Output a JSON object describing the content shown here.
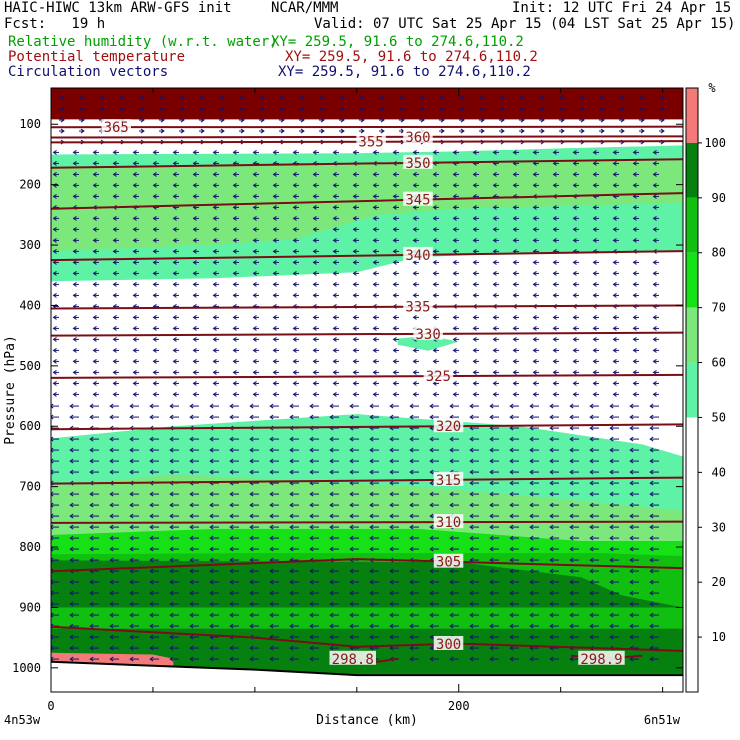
{
  "header": {
    "model": "HAIC-HIWC 13km ARW-GFS init",
    "org": "NCAR/MMM",
    "init": "Init: 12 UTC Fri 24 Apr 15",
    "fcst": "Fcst:   19 h",
    "valid": "Valid: 07 UTC Sat 25 Apr 15 (04 LST Sat 25 Apr 15)",
    "fields": [
      {
        "name": "Relative humidity (w.r.t. water)",
        "xy": "XY= 259.5, 91.6 to 274.6,110.2",
        "color": "#00a000"
      },
      {
        "name": "Potential temperature",
        "xy": "XY= 259.5, 91.6 to 274.6,110.2",
        "color": "#a01010"
      },
      {
        "name": "Circulation vectors",
        "xy": "XY= 259.5, 91.6 to 274.6,110.2",
        "color": "#101070"
      }
    ]
  },
  "colors": {
    "rh_50": "#5ef2a6",
    "rh_60": "#7ce87c",
    "rh_70": "#16e016",
    "rh_80": "#10bf10",
    "rh_90": "#06800e",
    "rh_100": "#f47a7a",
    "rh_top": "#7a0000",
    "theta": "#7a0e14",
    "vector": "#141470",
    "terrain": "#000000"
  },
  "chart_data": {
    "type": "heatmap",
    "title": "Relative humidity (w.r.t. water)",
    "xlabel": "Distance (km)",
    "ylabel": "Pressure (hPa)",
    "xlim": [
      0,
      310
    ],
    "ylim": [
      1040,
      40
    ],
    "y_scale": "pressure",
    "x_ticks": [
      "0",
      "200"
    ],
    "x_tick_values": [
      0,
      200
    ],
    "y_ticks": [
      "100",
      "200",
      "300",
      "400",
      "500",
      "600",
      "700",
      "800",
      "900",
      "1000"
    ],
    "y_tick_values": [
      100,
      200,
      300,
      400,
      500,
      600,
      700,
      800,
      900,
      1000
    ],
    "x_endpoints": [
      "4n53w",
      "6n51w"
    ],
    "colorbar": {
      "unit": "%",
      "levels": [
        10,
        20,
        30,
        40,
        50,
        60,
        70,
        80,
        90,
        100
      ],
      "labels": [
        "10",
        "20",
        "30",
        "40",
        "50",
        "60",
        "70",
        "80",
        "90",
        "100"
      ]
    },
    "rh_regions": [
      {
        "level": 100,
        "top_pts": [
          [
            0,
            40
          ],
          [
            310,
            40
          ]
        ],
        "bottom_pts": [
          [
            0,
            92
          ],
          [
            310,
            92
          ]
        ]
      },
      {
        "level": 50,
        "top_pts": [
          [
            0,
            150
          ],
          [
            150,
            148
          ],
          [
            200,
            145
          ],
          [
            250,
            140
          ],
          [
            310,
            135
          ]
        ],
        "bottom_pts": [
          [
            0,
            360
          ],
          [
            80,
            355
          ],
          [
            150,
            345
          ],
          [
            180,
            320
          ],
          [
            220,
            315
          ],
          [
            310,
            310
          ]
        ]
      },
      {
        "level": 50,
        "top_pts": [
          [
            0,
            620
          ],
          [
            60,
            600
          ],
          [
            150,
            580
          ],
          [
            230,
            600
          ],
          [
            290,
            630
          ],
          [
            310,
            650
          ]
        ],
        "bottom_pts": [
          [
            0,
            1030
          ],
          [
            310,
            1030
          ]
        ]
      },
      {
        "level": 60,
        "top_pts": [
          [
            0,
            170
          ],
          [
            100,
            168
          ],
          [
            200,
            165
          ],
          [
            310,
            160
          ]
        ],
        "bottom_pts": [
          [
            0,
            310
          ],
          [
            80,
            300
          ],
          [
            120,
            290
          ],
          [
            160,
            250
          ],
          [
            200,
            240
          ],
          [
            310,
            230
          ]
        ]
      },
      {
        "level": 60,
        "top_pts": [
          [
            0,
            700
          ],
          [
            60,
            680
          ],
          [
            120,
            690
          ],
          [
            180,
            700
          ],
          [
            250,
            720
          ],
          [
            310,
            740
          ]
        ],
        "bottom_pts": [
          [
            0,
            1030
          ],
          [
            310,
            1030
          ]
        ]
      },
      {
        "level": 70,
        "top_pts": [
          [
            0,
            780
          ],
          [
            80,
            770
          ],
          [
            180,
            770
          ],
          [
            260,
            790
          ],
          [
            310,
            790
          ]
        ],
        "bottom_pts": [
          [
            0,
            1030
          ],
          [
            310,
            1030
          ]
        ]
      },
      {
        "level": 80,
        "top_pts": [
          [
            0,
            812
          ],
          [
            100,
            810
          ],
          [
            200,
            810
          ],
          [
            270,
            810
          ],
          [
            310,
            815
          ]
        ],
        "bottom_pts": [
          [
            0,
            1030
          ],
          [
            310,
            1030
          ]
        ]
      },
      {
        "level": 90,
        "top_pts": [
          [
            0,
            822
          ],
          [
            120,
            824
          ],
          [
            200,
            825
          ],
          [
            260,
            850
          ],
          [
            280,
            880
          ],
          [
            310,
            900
          ]
        ],
        "bottom_pts": [
          [
            0,
            1010
          ],
          [
            310,
            1010
          ]
        ]
      },
      {
        "level": 80,
        "top_pts": [
          [
            0,
            900
          ],
          [
            300,
            900
          ],
          [
            310,
            900
          ]
        ],
        "bottom_pts": [
          [
            0,
            935
          ],
          [
            310,
            935
          ]
        ]
      },
      {
        "level": 100,
        "top_pts": [
          [
            0,
            975
          ],
          [
            50,
            978
          ],
          [
            60,
            985
          ]
        ],
        "bottom_pts": [
          [
            0,
            1000
          ],
          [
            60,
            1000
          ]
        ]
      },
      {
        "level": 50,
        "top_pts": [
          [
            170,
            455
          ],
          [
            185,
            450
          ],
          [
            200,
            460
          ]
        ],
        "bottom_pts": [
          [
            170,
            465
          ],
          [
            185,
            475
          ],
          [
            200,
            460
          ]
        ]
      }
    ],
    "theta_contours": [
      {
        "label": "365",
        "label_x": 32,
        "pts": [
          [
            0,
            105
          ],
          [
            310,
            104
          ]
        ]
      },
      {
        "label": "360",
        "label_x": 180,
        "pts": [
          [
            0,
            122
          ],
          [
            310,
            120
          ]
        ]
      },
      {
        "label": "355",
        "label_x": 157,
        "pts": [
          [
            0,
            130
          ],
          [
            310,
            128
          ]
        ]
      },
      {
        "label": "350",
        "label_x": 180,
        "pts": [
          [
            0,
            172
          ],
          [
            310,
            158
          ]
        ]
      },
      {
        "label": "345",
        "label_x": 180,
        "pts": [
          [
            0,
            240
          ],
          [
            310,
            214
          ]
        ]
      },
      {
        "label": "340",
        "label_x": 180,
        "pts": [
          [
            0,
            325
          ],
          [
            310,
            310
          ]
        ]
      },
      {
        "label": "335",
        "label_x": 180,
        "pts": [
          [
            0,
            405
          ],
          [
            310,
            400
          ]
        ]
      },
      {
        "label": "330",
        "label_x": 185,
        "pts": [
          [
            0,
            450
          ],
          [
            310,
            445
          ]
        ]
      },
      {
        "label": "325",
        "label_x": 190,
        "pts": [
          [
            0,
            520
          ],
          [
            310,
            515
          ]
        ]
      },
      {
        "label": "320",
        "label_x": 195,
        "pts": [
          [
            0,
            605
          ],
          [
            310,
            597
          ]
        ]
      },
      {
        "label": "315",
        "label_x": 195,
        "pts": [
          [
            0,
            695
          ],
          [
            310,
            685
          ]
        ]
      },
      {
        "label": "310",
        "label_x": 195,
        "pts": [
          [
            0,
            760
          ],
          [
            310,
            758
          ]
        ]
      },
      {
        "label": "305",
        "label_x": 195,
        "pts": [
          [
            0,
            840
          ],
          [
            150,
            820
          ],
          [
            310,
            835
          ]
        ]
      },
      {
        "label": "300",
        "label_x": 195,
        "pts": [
          [
            0,
            932
          ],
          [
            100,
            950
          ],
          [
            150,
            965
          ],
          [
            200,
            960
          ],
          [
            310,
            972
          ]
        ]
      },
      {
        "label": "298.8",
        "label_x": 148,
        "pts": [
          [
            150,
            985
          ],
          [
            160,
            990
          ],
          [
            170,
            985
          ]
        ]
      },
      {
        "label": "298.9",
        "label_x": 270,
        "pts": [
          [
            255,
            980
          ],
          [
            270,
            985
          ],
          [
            290,
            980
          ]
        ]
      }
    ],
    "terrain_pts": [
      [
        0,
        990
      ],
      [
        100,
        1003
      ],
      [
        150,
        1012
      ],
      [
        200,
        1012
      ],
      [
        310,
        1012
      ]
    ],
    "vectors": {
      "upper_layer_p": [
        50,
        140
      ],
      "mid_layer_p": [
        140,
        560
      ],
      "lower_layer_p": [
        560,
        1000
      ],
      "u_upper": 0.25,
      "u_mid": -0.5,
      "u_lower": -0.8
    }
  }
}
